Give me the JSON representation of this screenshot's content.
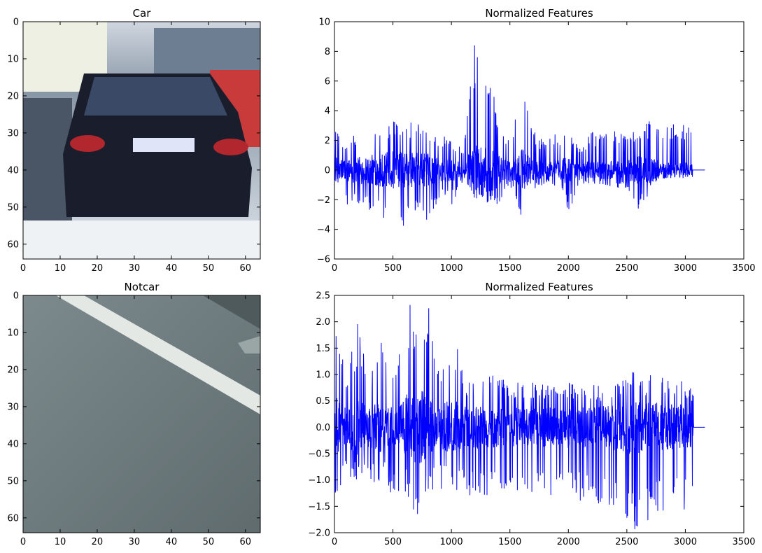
{
  "chart_data": [
    {
      "type": "image",
      "title": "Car",
      "image_description_name": "car-rear-image",
      "xlim": [
        0,
        64
      ],
      "ylim": [
        64,
        0
      ],
      "xticks": [
        "0",
        "10",
        "20",
        "30",
        "40",
        "50",
        "60"
      ],
      "yticks": [
        "0",
        "10",
        "20",
        "30",
        "40",
        "50",
        "60"
      ]
    },
    {
      "type": "line",
      "title": "Normalized Features",
      "color": "#0000ff",
      "xlim": [
        0,
        3500
      ],
      "ylim": [
        -6,
        10
      ],
      "xticks": [
        "0",
        "500",
        "1000",
        "1500",
        "2000",
        "2500",
        "3000",
        "3500"
      ],
      "yticks": [
        "−6",
        "−4",
        "−2",
        "0",
        "2",
        "4",
        "6",
        "8",
        "10"
      ],
      "n_points": 3168,
      "series_envelope": {
        "x": [
          0,
          100,
          200,
          300,
          400,
          500,
          600,
          700,
          800,
          900,
          1000,
          1100,
          1200,
          1300,
          1400,
          1500,
          1600,
          1700,
          1800,
          1900,
          2000,
          2100,
          2200,
          2300,
          2400,
          2500,
          2600,
          2700,
          2800,
          2900,
          3000,
          3060,
          3168
        ],
        "upper": [
          3.0,
          1.6,
          2.9,
          2.9,
          3.0,
          3.7,
          3.0,
          3.7,
          2.8,
          2.6,
          2.3,
          1.5,
          9.5,
          8.0,
          4.3,
          1.8,
          5.3,
          3.0,
          1.8,
          2.6,
          2.8,
          1.5,
          2.6,
          2.5,
          2.7,
          2.5,
          2.7,
          3.4,
          3.3,
          3.2,
          3.1,
          3.0,
          0.0
        ],
        "lower": [
          -2.2,
          -2.4,
          -2.5,
          -2.8,
          -3.6,
          -3.8,
          -4.0,
          -2.9,
          -3.5,
          -1.8,
          -2.4,
          -0.8,
          -1.7,
          -2.2,
          -2.3,
          -1.0,
          -3.3,
          -1.4,
          -0.9,
          -1.2,
          -2.9,
          -1.0,
          -0.9,
          -1.0,
          -1.2,
          -1.3,
          -2.7,
          -1.6,
          0.0,
          0.0,
          0.0,
          0.0,
          0.0
        ]
      }
    },
    {
      "type": "image",
      "title": "Notcar",
      "image_description_name": "road-surface-image",
      "xlim": [
        0,
        64
      ],
      "ylim": [
        64,
        0
      ],
      "xticks": [
        "0",
        "10",
        "20",
        "30",
        "40",
        "50",
        "60"
      ],
      "yticks": [
        "0",
        "10",
        "20",
        "30",
        "40",
        "50",
        "60"
      ]
    },
    {
      "type": "line",
      "title": "Normalized Features",
      "color": "#0000ff",
      "xlim": [
        0,
        3500
      ],
      "ylim": [
        -2.0,
        2.5
      ],
      "xticks": [
        "0",
        "500",
        "1000",
        "1500",
        "2000",
        "2500",
        "3000",
        "3500"
      ],
      "yticks": [
        "−2.0",
        "−1.5",
        "−1.0",
        "−0.5",
        "0.0",
        "0.5",
        "1.0",
        "1.5",
        "2.0",
        "2.5"
      ],
      "n_points": 3168,
      "series_envelope": {
        "x": [
          0,
          100,
          200,
          300,
          400,
          500,
          600,
          700,
          800,
          900,
          1000,
          1100,
          1200,
          1300,
          1400,
          1500,
          1600,
          1700,
          1800,
          1900,
          2000,
          2100,
          2200,
          2300,
          2400,
          2500,
          2600,
          2700,
          2800,
          2900,
          3000,
          3070,
          3168
        ],
        "upper": [
          2.1,
          1.0,
          2.0,
          1.0,
          1.9,
          1.0,
          2.3,
          2.4,
          2.4,
          1.0,
          2.1,
          1.0,
          1.0,
          1.0,
          1.0,
          0.8,
          0.9,
          0.9,
          0.8,
          0.8,
          0.9,
          0.8,
          0.8,
          0.8,
          0.9,
          1.1,
          1.0,
          1.0,
          1.0,
          0.9,
          0.9,
          0.7,
          0.0
        ],
        "lower": [
          -1.4,
          -1.0,
          -1.1,
          -1.2,
          -1.0,
          -1.3,
          -1.2,
          -1.7,
          -1.3,
          -1.2,
          -1.2,
          -1.3,
          -1.3,
          -1.3,
          -1.2,
          -1.2,
          -1.3,
          -1.3,
          -1.4,
          -1.3,
          -1.4,
          -1.4,
          -1.5,
          -1.6,
          -1.6,
          -1.8,
          -2.0,
          -1.8,
          -1.6,
          -1.6,
          -1.6,
          -1.5,
          0.0
        ]
      }
    }
  ]
}
